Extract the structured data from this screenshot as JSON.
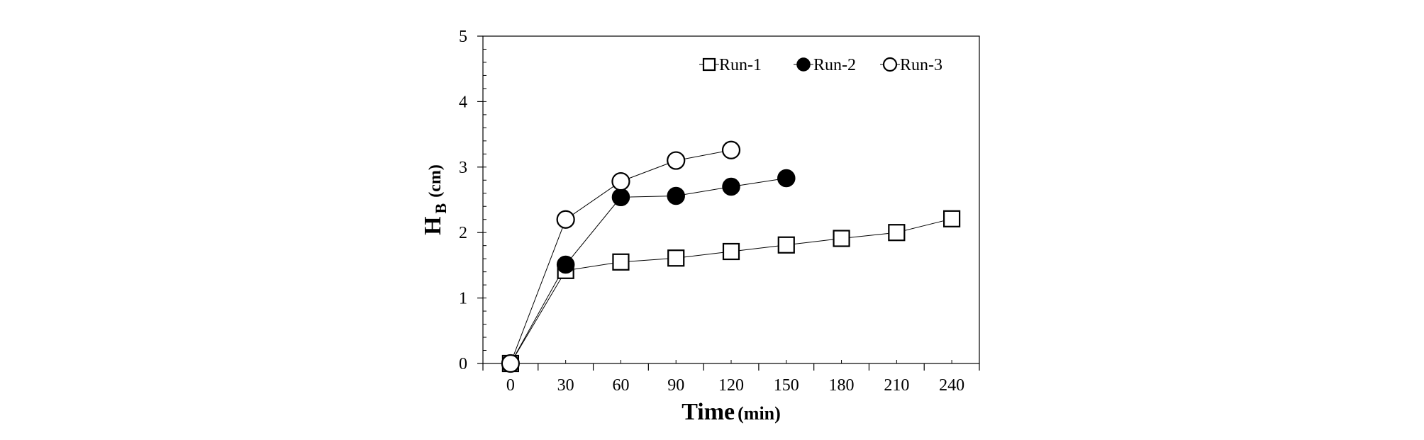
{
  "chart_data": {
    "type": "line",
    "title": "",
    "xlabel": {
      "main": "Time",
      "unit": "(min)"
    },
    "ylabel": {
      "main": "H",
      "subscript": "B",
      "unit": "(cm)"
    },
    "xlim": [
      -15,
      255
    ],
    "ylim": [
      0,
      5
    ],
    "x_ticks": [
      0,
      30,
      60,
      90,
      120,
      150,
      180,
      210,
      240
    ],
    "y_ticks": [
      0,
      1,
      2,
      3,
      4,
      5
    ],
    "grid": false,
    "legend_position": "top-right",
    "series": [
      {
        "name": "Run-1",
        "marker": "open-square",
        "x": [
          0,
          30,
          60,
          90,
          120,
          150,
          180,
          210,
          240
        ],
        "values": [
          0,
          1.42,
          1.55,
          1.61,
          1.71,
          1.81,
          1.91,
          2.0,
          2.21
        ]
      },
      {
        "name": "Run-2",
        "marker": "filled-circle",
        "x": [
          0,
          30,
          60,
          90,
          120,
          150
        ],
        "values": [
          0,
          1.51,
          2.54,
          2.56,
          2.7,
          2.83
        ]
      },
      {
        "name": "Run-3",
        "marker": "open-circle",
        "x": [
          0,
          30,
          60,
          90,
          120
        ],
        "values": [
          0,
          2.2,
          2.78,
          3.1,
          3.26
        ]
      }
    ]
  }
}
